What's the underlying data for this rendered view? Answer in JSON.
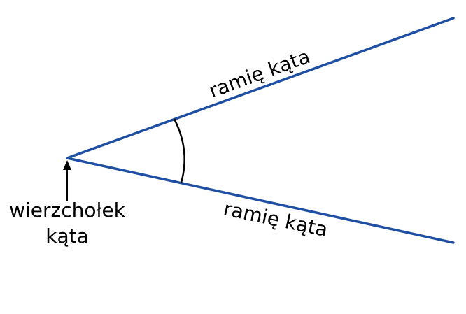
{
  "diagram": {
    "arm_upper_label": "ramię kąta",
    "arm_lower_label": "ramię kąta",
    "vertex_label_line1": "wierzchołek",
    "vertex_label_line2": "kąta"
  },
  "colors": {
    "arms": "#1f4fa3",
    "arc": "#000000",
    "arrow": "#000000",
    "text": "#000000",
    "background": "#ffffff"
  }
}
